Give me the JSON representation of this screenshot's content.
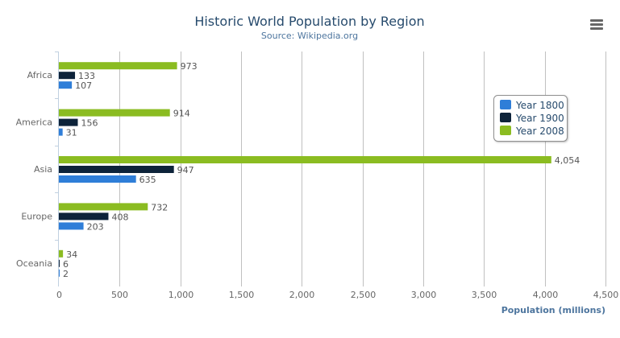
{
  "chart_data": {
    "type": "bar",
    "orientation": "horizontal",
    "title": "Historic World Population by Region",
    "subtitle": "Source: Wikipedia.org",
    "categories": [
      "Africa",
      "America",
      "Asia",
      "Europe",
      "Oceania"
    ],
    "series": [
      {
        "name": "Year 1800",
        "color": "#2f7ed8",
        "values": [
          107,
          31,
          635,
          203,
          2
        ]
      },
      {
        "name": "Year 1900",
        "color": "#0d233a",
        "values": [
          133,
          156,
          947,
          408,
          6
        ]
      },
      {
        "name": "Year 2008",
        "color": "#8bbc21",
        "values": [
          973,
          914,
          4054,
          732,
          34
        ]
      }
    ],
    "xlabel": "",
    "ylabel": "Population (millions)",
    "ylim": [
      0,
      4500
    ],
    "ticks": [
      "0",
      "500",
      "1,000",
      "1,500",
      "2,000",
      "2,500",
      "3,000",
      "3,500",
      "4,000",
      "4,500"
    ],
    "tick_values": [
      0,
      500,
      1000,
      1500,
      2000,
      2500,
      3000,
      3500,
      4000,
      4500
    ],
    "grid": true,
    "data_labels": true,
    "legend_placement": "top-right inside"
  },
  "menu_icon": "hamburger-menu-icon"
}
